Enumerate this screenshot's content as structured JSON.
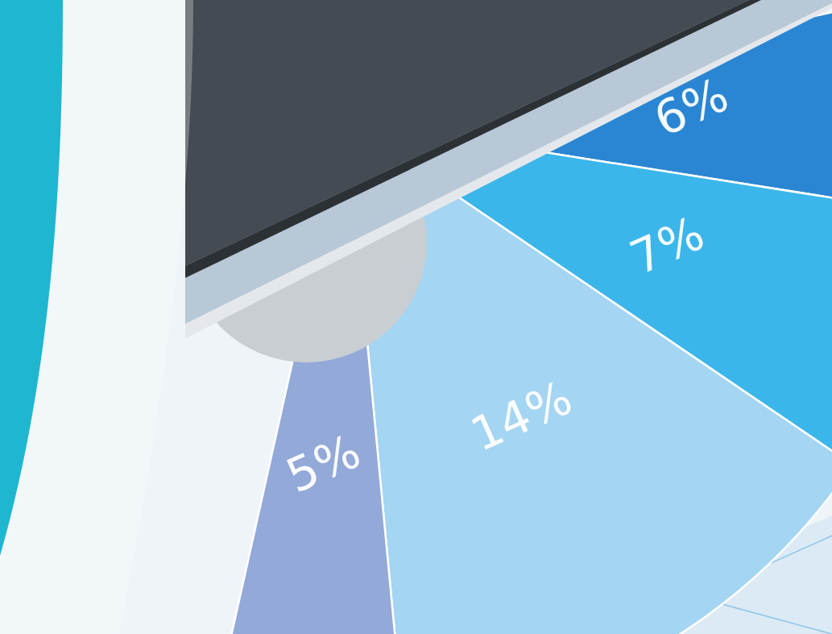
{
  "chart_data": {
    "type": "pie",
    "values": [
      6,
      7,
      14,
      5
    ],
    "value_labels": [
      "6%",
      "7%",
      "14%",
      "5%"
    ],
    "colors": [
      "#2a86d2",
      "#3bb6ea",
      "#a4d5f2",
      "#93a9d8"
    ],
    "data_labels": true
  }
}
